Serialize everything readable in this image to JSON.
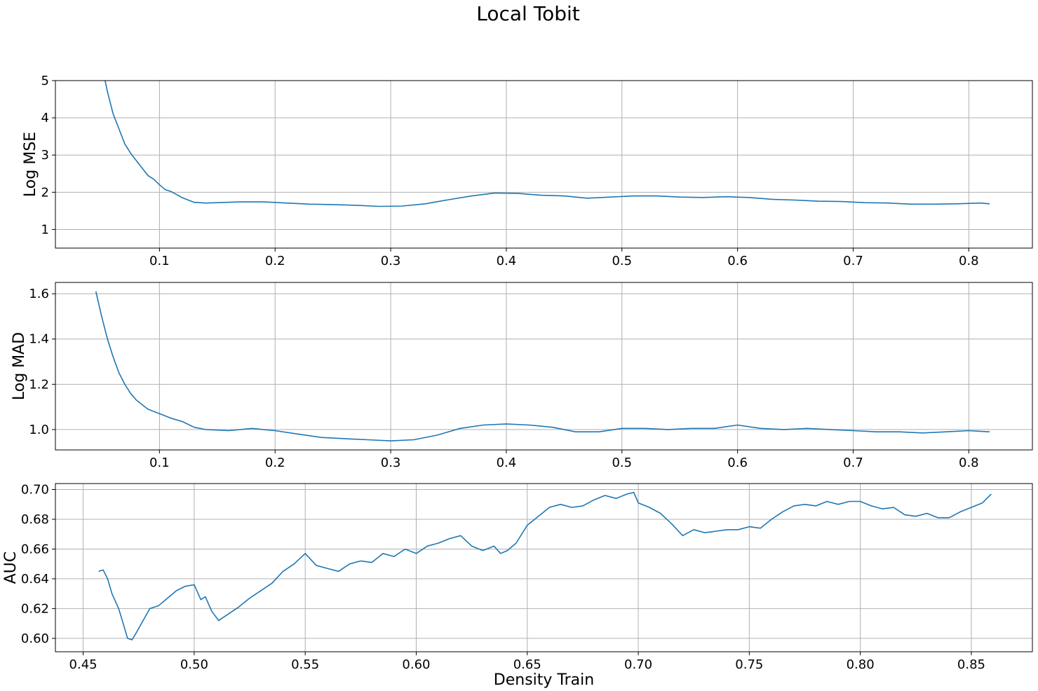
{
  "figure": {
    "title": "Local Tobit"
  },
  "colors": {
    "line": "#1f77b4",
    "grid": "#b0b0b0",
    "axes": "#000000"
  },
  "chart_data": [
    {
      "type": "line",
      "xlabel": "",
      "ylabel": "Log MSE",
      "xlim": [
        0.01,
        0.855
      ],
      "ylim": [
        0.5,
        5.0
      ],
      "xticks": [
        0.1,
        0.2,
        0.3,
        0.4,
        0.5,
        0.6,
        0.7,
        0.8
      ],
      "xtick_labels": [
        "0.1",
        "0.2",
        "0.3",
        "0.4",
        "0.5",
        "0.6",
        "0.7",
        "0.8"
      ],
      "yticks": [
        1,
        2,
        3,
        4,
        5
      ],
      "ytick_labels": [
        "1",
        "2",
        "3",
        "4",
        "5"
      ],
      "grid": true,
      "series": [
        {
          "x": [
            0.053,
            0.055,
            0.06,
            0.065,
            0.07,
            0.075,
            0.08,
            0.085,
            0.09,
            0.095,
            0.1,
            0.105,
            0.11,
            0.12,
            0.13,
            0.14,
            0.15,
            0.17,
            0.19,
            0.21,
            0.23,
            0.25,
            0.27,
            0.29,
            0.31,
            0.33,
            0.35,
            0.37,
            0.39,
            0.41,
            0.43,
            0.45,
            0.47,
            0.49,
            0.51,
            0.53,
            0.55,
            0.57,
            0.59,
            0.61,
            0.63,
            0.65,
            0.67,
            0.69,
            0.71,
            0.73,
            0.75,
            0.77,
            0.79,
            0.81,
            0.818
          ],
          "y": [
            5.0,
            4.7,
            4.1,
            3.7,
            3.3,
            3.05,
            2.85,
            2.65,
            2.45,
            2.35,
            2.2,
            2.07,
            2.02,
            1.85,
            1.73,
            1.71,
            1.72,
            1.74,
            1.74,
            1.71,
            1.68,
            1.67,
            1.65,
            1.62,
            1.63,
            1.69,
            1.8,
            1.9,
            1.98,
            1.97,
            1.92,
            1.9,
            1.84,
            1.87,
            1.9,
            1.9,
            1.87,
            1.86,
            1.88,
            1.86,
            1.81,
            1.79,
            1.76,
            1.75,
            1.72,
            1.71,
            1.68,
            1.68,
            1.69,
            1.71,
            1.69
          ]
        }
      ]
    },
    {
      "type": "line",
      "xlabel": "",
      "ylabel": "Log MAD",
      "xlim": [
        0.01,
        0.855
      ],
      "ylim": [
        0.91,
        1.65
      ],
      "xticks": [
        0.1,
        0.2,
        0.3,
        0.4,
        0.5,
        0.6,
        0.7,
        0.8
      ],
      "xtick_labels": [
        "0.1",
        "0.2",
        "0.3",
        "0.4",
        "0.5",
        "0.6",
        "0.7",
        "0.8"
      ],
      "yticks": [
        1.0,
        1.2,
        1.4,
        1.6
      ],
      "ytick_labels": [
        "1.0",
        "1.2",
        "1.4",
        "1.6"
      ],
      "grid": true,
      "series": [
        {
          "x": [
            0.045,
            0.05,
            0.055,
            0.06,
            0.065,
            0.07,
            0.075,
            0.08,
            0.09,
            0.1,
            0.11,
            0.12,
            0.13,
            0.14,
            0.16,
            0.18,
            0.2,
            0.22,
            0.24,
            0.26,
            0.28,
            0.3,
            0.32,
            0.34,
            0.36,
            0.38,
            0.4,
            0.42,
            0.44,
            0.46,
            0.48,
            0.5,
            0.52,
            0.54,
            0.56,
            0.58,
            0.6,
            0.62,
            0.64,
            0.66,
            0.68,
            0.7,
            0.72,
            0.74,
            0.76,
            0.78,
            0.8,
            0.818
          ],
          "y": [
            1.61,
            1.5,
            1.4,
            1.32,
            1.25,
            1.2,
            1.16,
            1.13,
            1.09,
            1.07,
            1.05,
            1.035,
            1.01,
            1.0,
            0.995,
            1.005,
            0.995,
            0.98,
            0.965,
            0.96,
            0.955,
            0.95,
            0.955,
            0.975,
            1.005,
            1.02,
            1.025,
            1.02,
            1.01,
            0.99,
            0.99,
            1.005,
            1.005,
            1.0,
            1.005,
            1.005,
            1.02,
            1.005,
            1.0,
            1.005,
            1.0,
            0.995,
            0.99,
            0.99,
            0.985,
            0.99,
            0.995,
            0.99
          ]
        }
      ]
    },
    {
      "type": "line",
      "xlabel": "Density Train",
      "ylabel": "AUC",
      "xlim": [
        0.4375,
        0.8775
      ],
      "ylim": [
        0.591,
        0.704
      ],
      "xticks": [
        0.45,
        0.5,
        0.55,
        0.6,
        0.65,
        0.7,
        0.75,
        0.8,
        0.85
      ],
      "xtick_labels": [
        "0.45",
        "0.50",
        "0.55",
        "0.60",
        "0.65",
        "0.70",
        "0.75",
        "0.80",
        "0.85"
      ],
      "yticks": [
        0.6,
        0.62,
        0.64,
        0.66,
        0.68,
        0.7
      ],
      "ytick_labels": [
        "0.60",
        "0.62",
        "0.64",
        "0.66",
        "0.68",
        "0.70"
      ],
      "grid": true,
      "series": [
        {
          "x": [
            0.457,
            0.459,
            0.461,
            0.463,
            0.466,
            0.468,
            0.47,
            0.472,
            0.474,
            0.477,
            0.48,
            0.484,
            0.488,
            0.492,
            0.496,
            0.5,
            0.503,
            0.505,
            0.508,
            0.511,
            0.515,
            0.52,
            0.525,
            0.53,
            0.535,
            0.54,
            0.545,
            0.55,
            0.555,
            0.56,
            0.565,
            0.57,
            0.575,
            0.58,
            0.585,
            0.59,
            0.595,
            0.6,
            0.605,
            0.61,
            0.615,
            0.62,
            0.625,
            0.63,
            0.635,
            0.638,
            0.641,
            0.645,
            0.65,
            0.655,
            0.66,
            0.665,
            0.67,
            0.675,
            0.68,
            0.685,
            0.69,
            0.695,
            0.698,
            0.7,
            0.705,
            0.71,
            0.715,
            0.72,
            0.725,
            0.73,
            0.735,
            0.74,
            0.745,
            0.75,
            0.755,
            0.76,
            0.765,
            0.77,
            0.775,
            0.78,
            0.785,
            0.79,
            0.795,
            0.8,
            0.805,
            0.81,
            0.815,
            0.82,
            0.825,
            0.83,
            0.835,
            0.84,
            0.845,
            0.85,
            0.855,
            0.859
          ],
          "y": [
            0.645,
            0.646,
            0.64,
            0.63,
            0.62,
            0.61,
            0.6,
            0.599,
            0.604,
            0.612,
            0.62,
            0.622,
            0.627,
            0.632,
            0.635,
            0.636,
            0.626,
            0.628,
            0.618,
            0.612,
            0.616,
            0.621,
            0.627,
            0.632,
            0.637,
            0.645,
            0.65,
            0.657,
            0.649,
            0.647,
            0.645,
            0.65,
            0.652,
            0.651,
            0.657,
            0.655,
            0.66,
            0.657,
            0.662,
            0.664,
            0.667,
            0.669,
            0.662,
            0.659,
            0.662,
            0.657,
            0.659,
            0.664,
            0.676,
            0.682,
            0.688,
            0.69,
            0.688,
            0.689,
            0.693,
            0.696,
            0.694,
            0.697,
            0.698,
            0.691,
            0.688,
            0.684,
            0.677,
            0.669,
            0.673,
            0.671,
            0.672,
            0.673,
            0.673,
            0.675,
            0.674,
            0.68,
            0.685,
            0.689,
            0.69,
            0.689,
            0.692,
            0.69,
            0.692,
            0.692,
            0.689,
            0.687,
            0.688,
            0.683,
            0.682,
            0.684,
            0.681,
            0.681,
            0.685,
            0.688,
            0.691,
            0.697
          ]
        }
      ]
    }
  ]
}
